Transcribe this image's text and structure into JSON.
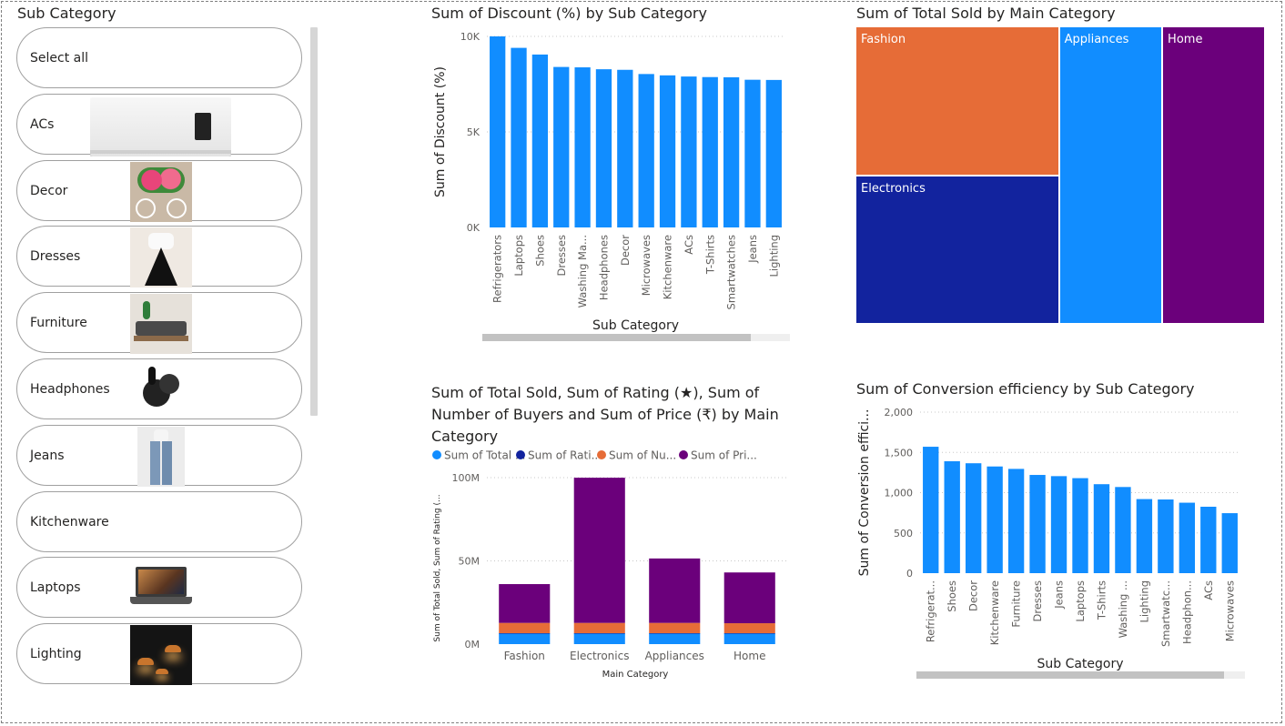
{
  "slicer": {
    "title": "Sub Category",
    "items": [
      {
        "label": "Select all",
        "image": "none"
      },
      {
        "label": "ACs",
        "image": "air-conditioner-photo"
      },
      {
        "label": "Decor",
        "image": "flower-cycle-decor-photo"
      },
      {
        "label": "Dresses",
        "image": "dress-photo"
      },
      {
        "label": "Furniture",
        "image": "sofa-set-photo"
      },
      {
        "label": "Headphones",
        "image": "earbuds-photo"
      },
      {
        "label": "Jeans",
        "image": "jeans-photo"
      },
      {
        "label": "Kitchenware",
        "image": "none"
      },
      {
        "label": "Laptops",
        "image": "laptop-photo"
      },
      {
        "label": "Lighting",
        "image": "pendant-lights-photo"
      }
    ]
  },
  "discount_chart": {
    "title": "Sum of Discount (%) by Sub Category",
    "chart_data": {
      "type": "bar",
      "xlabel": "Sub Category",
      "ylabel": "Sum of Discount (%)",
      "ylim": [
        0,
        10000
      ],
      "yticks": [
        "0K",
        "5K",
        "10K"
      ],
      "yticks_values": [
        0,
        5000,
        10000
      ],
      "categories": [
        "Refrigerators",
        "Laptops",
        "Shoes",
        "Dresses",
        "Washing Ma...",
        "Headphones",
        "Decor",
        "Microwaves",
        "Kitchenware",
        "ACs",
        "T-Shirts",
        "Smartwatches",
        "Jeans",
        "Lighting"
      ],
      "values": [
        10000,
        9400,
        9050,
        8400,
        8380,
        8280,
        8250,
        8030,
        7960,
        7900,
        7870,
        7860,
        7730,
        7720
      ],
      "color": "#118DFF",
      "grid": true
    }
  },
  "treemap": {
    "title": "Sum of Total Sold by Main Category",
    "chart_data": {
      "type": "treemap",
      "items": [
        {
          "label": "Fashion",
          "color": "#E66C37",
          "share": 0.249
        },
        {
          "label": "Electronics",
          "color": "#12239E",
          "share": 0.248
        },
        {
          "label": "Appliances",
          "color": "#118DFF",
          "share": 0.252
        },
        {
          "label": "Home",
          "color": "#6B007B",
          "share": 0.251
        }
      ]
    }
  },
  "stacked_chart": {
    "title_lines": [
      "Sum of Total Sold, Sum of Rating (★), Sum of",
      "Number of Buyers and Sum of Price (₹) by Main",
      "Category"
    ],
    "chart_data": {
      "type": "bar",
      "stacked": true,
      "xlabel": "Main Category",
      "ylabel": "Sum of Total Sold, Sum of Rating (...",
      "ylim": [
        0,
        100000000
      ],
      "yticks": [
        "0M",
        "50M",
        "100M"
      ],
      "yticks_values": [
        0,
        50000000,
        100000000
      ],
      "categories": [
        "Fashion",
        "Electronics",
        "Appliances",
        "Home"
      ],
      "series": [
        {
          "name": "Sum of Total ...",
          "color": "#118DFF",
          "values": [
            6500000,
            6500000,
            6500000,
            6500000
          ]
        },
        {
          "name": "Sum of Rati...",
          "color": "#12239E",
          "values": [
            50000,
            50000,
            50000,
            50000
          ]
        },
        {
          "name": "Sum of Nu...",
          "color": "#E66C37",
          "values": [
            6200000,
            6200000,
            6200000,
            6000000
          ]
        },
        {
          "name": "Sum of Pri...",
          "color": "#6B007B",
          "values": [
            23300000,
            87200000,
            38700000,
            30500000
          ]
        }
      ],
      "legend": "top",
      "grid": true
    }
  },
  "conversion_chart": {
    "title": "Sum of Conversion efficiency by Sub Category",
    "chart_data": {
      "type": "bar",
      "xlabel": "Sub Category",
      "ylabel": "Sum of Conversion effici...",
      "ylim": [
        0,
        2000
      ],
      "yticks": [
        "0",
        "500",
        "1,000",
        "1,500",
        "2,000"
      ],
      "yticks_values": [
        0,
        500,
        1000,
        1500,
        2000
      ],
      "categories": [
        "Refrigerat...",
        "Shoes",
        "Decor",
        "Kitchenware",
        "Furniture",
        "Dresses",
        "Jeans",
        "Laptops",
        "T-Shirts",
        "Washing ...",
        "Lighting",
        "Smartwatc...",
        "Headphon...",
        "ACs",
        "Microwaves"
      ],
      "values": [
        1570,
        1390,
        1365,
        1325,
        1295,
        1220,
        1205,
        1180,
        1105,
        1070,
        920,
        915,
        875,
        825,
        745
      ],
      "color": "#118DFF",
      "grid": true
    }
  }
}
